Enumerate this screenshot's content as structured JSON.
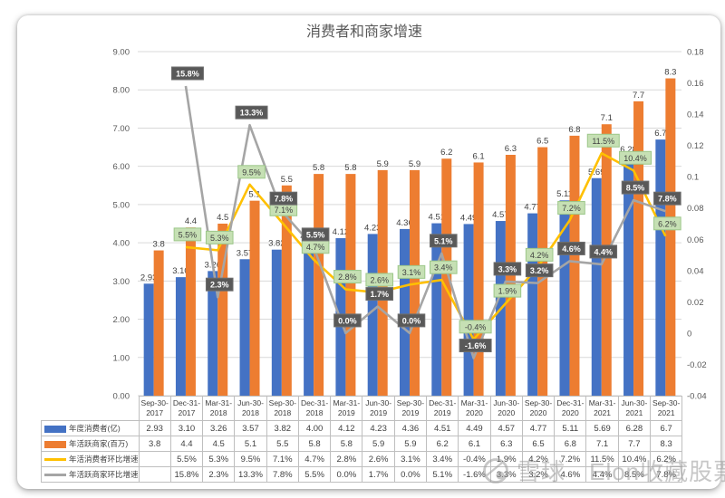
{
  "title": "消费者和商家增速",
  "watermark": {
    "logo_icon": "xueqiu-snowball-logo",
    "text": "雪球 · Elon收藏股票"
  },
  "chart_data": {
    "type": "combo",
    "title": "消费者和商家增速",
    "grid": true,
    "legend_position": "data-table-left",
    "categories": [
      "Sep-30-2017",
      "Dec-31-2017",
      "Mar-31-2018",
      "Jun-30-2018",
      "Sep-30-2018",
      "Dec-31-2018",
      "Mar-31-2019",
      "Jun-30-2019",
      "Sep-30-2019",
      "Dec-31-2019",
      "Mar-31-2020",
      "Jun-30-2020",
      "Sep-30-2020",
      "Dec-31-2020",
      "Mar-31-2021",
      "Jun-30-2021",
      "Sep-30-2021"
    ],
    "series": [
      {
        "name": "年度消费者(亿)",
        "type": "bar",
        "axis": "left",
        "color": "#4472C4",
        "values": [
          "2.93",
          "3.10",
          "3.26",
          "3.57",
          "3.82",
          "4.00",
          "4.12",
          "4.23",
          "4.36",
          "4.51",
          "4.49",
          "4.57",
          "4.77",
          "5.11",
          "5.69",
          "6.28",
          "6.7"
        ]
      },
      {
        "name": "年活跃商家(百万)",
        "type": "bar",
        "axis": "left",
        "color": "#ED7D31",
        "values": [
          "3.8",
          "4.4",
          "4.5",
          "5.1",
          "5.5",
          "5.8",
          "5.8",
          "5.9",
          "5.9",
          "6.2",
          "6.1",
          "6.3",
          "6.5",
          "6.8",
          "7.1",
          "7.7",
          "8.3"
        ]
      },
      {
        "name": "年活消费者环比增速",
        "type": "line",
        "axis": "right",
        "color": "#FFC000",
        "label_style": "green",
        "values_pct": [
          null,
          "5.5",
          "5.3",
          "9.5",
          "7.1",
          "4.7",
          "2.8",
          "2.6",
          "3.1",
          "3.4",
          "-0.4",
          "1.9",
          "4.2",
          "7.2",
          "11.5",
          "10.4",
          "6.2"
        ]
      },
      {
        "name": "年活跃商家环比增速",
        "type": "line",
        "axis": "right",
        "color": "#A5A5A5",
        "label_style": "dark",
        "values_pct": [
          null,
          "15.8",
          "2.3",
          "13.3",
          "7.8",
          "5.5",
          "0.0",
          "1.7",
          "0.0",
          "5.1",
          "-1.6",
          "3.3",
          "3.2",
          "4.6",
          "4.4",
          "8.5",
          "7.8"
        ]
      }
    ],
    "left_axis": {
      "min": 0,
      "max": 9,
      "ticks": [
        "9.00",
        "8.00",
        "7.00",
        "6.00",
        "5.00",
        "4.00",
        "3.00",
        "2.00",
        "1.00",
        "0.00"
      ]
    },
    "right_axis": {
      "min": -0.04,
      "max": 0.18,
      "ticks": [
        "0.18",
        "0.16",
        "0.14",
        "0.12",
        "0.1",
        "0.08",
        "0.06",
        "0.04",
        "0.02",
        "0",
        "-0.02",
        "-0.04"
      ]
    },
    "colors": {
      "green_badge_bg": "#C6E0B4",
      "green_badge_border": "#9CC789",
      "green_badge_text": "#404040",
      "dark_badge_bg": "#595959",
      "dark_badge_border": "#6E6E6E",
      "dark_badge_text": "#FFFFFF",
      "gridline": "#D9D9D9",
      "axis_text": "#595959",
      "bar_label": "#3F3F3F",
      "table_border": "#BFBFBF",
      "table_text": "#404040"
    }
  }
}
